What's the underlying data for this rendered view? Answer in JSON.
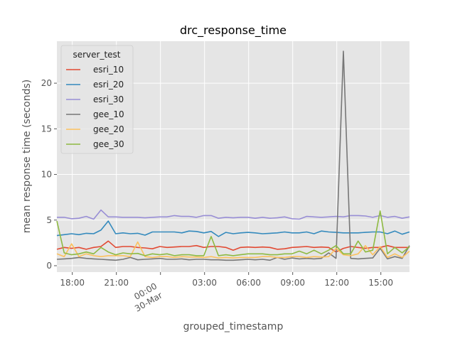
{
  "chart_data": {
    "type": "line",
    "title": "drc_response_time",
    "xlabel": "grouped_timestamp",
    "ylabel": "mean response time (seconds)",
    "x_unit": "hour",
    "x_ticks": [
      {
        "x": 17.95,
        "label": "18:00"
      },
      {
        "x": 20.95,
        "label": "21:00"
      },
      {
        "x": 23.95,
        "label": "00:00",
        "sublabel": "30-Mar"
      },
      {
        "x": 26.95,
        "label": "03:00"
      },
      {
        "x": 29.95,
        "label": "06:00"
      },
      {
        "x": 32.95,
        "label": "09:00"
      },
      {
        "x": 35.95,
        "label": "12:00"
      },
      {
        "x": 38.95,
        "label": "15:00"
      }
    ],
    "y_ticks": [
      0,
      5,
      10,
      15,
      20
    ],
    "xlim": [
      16.9,
      40.9
    ],
    "ylim": [
      -0.7,
      24.6
    ],
    "grid": true,
    "legend": {
      "title": "server_test",
      "position": "top-left"
    },
    "x": [
      16.9,
      17.4,
      17.9,
      18.4,
      18.9,
      19.4,
      19.9,
      20.4,
      20.9,
      21.4,
      21.9,
      22.4,
      22.9,
      23.4,
      23.9,
      24.4,
      24.9,
      25.4,
      25.9,
      26.4,
      26.9,
      27.4,
      27.9,
      28.4,
      28.9,
      29.4,
      29.9,
      30.4,
      30.9,
      31.4,
      31.9,
      32.4,
      32.9,
      33.4,
      33.9,
      34.4,
      34.9,
      35.4,
      35.9,
      36.4,
      36.9,
      37.4,
      37.9,
      38.4,
      38.9,
      39.4,
      39.9,
      40.4,
      40.9
    ],
    "series": [
      {
        "name": "esri_10",
        "color": "#e24a33",
        "values": [
          1.8,
          2.0,
          1.9,
          2.0,
          1.8,
          2.0,
          2.1,
          2.7,
          2.0,
          2.1,
          2.1,
          2.0,
          1.95,
          1.85,
          2.1,
          2.0,
          2.05,
          2.1,
          2.1,
          2.2,
          2.0,
          2.1,
          2.1,
          2.0,
          1.7,
          2.0,
          2.05,
          2.0,
          2.05,
          2.0,
          1.8,
          1.85,
          2.0,
          2.05,
          2.1,
          2.0,
          2.05,
          2.0,
          1.5,
          1.9,
          2.1,
          2.0,
          1.9,
          2.0,
          2.0,
          2.2,
          2.0,
          2.0,
          2.0
        ]
      },
      {
        "name": "esri_20",
        "color": "#348abd",
        "values": [
          3.3,
          3.4,
          3.5,
          3.4,
          3.55,
          3.5,
          3.9,
          4.9,
          3.5,
          3.6,
          3.5,
          3.55,
          3.35,
          3.7,
          3.7,
          3.7,
          3.7,
          3.6,
          3.8,
          3.75,
          3.6,
          3.75,
          3.2,
          3.65,
          3.5,
          3.6,
          3.65,
          3.6,
          3.5,
          3.55,
          3.6,
          3.7,
          3.6,
          3.6,
          3.7,
          3.5,
          3.8,
          3.7,
          3.65,
          3.6,
          3.6,
          3.6,
          3.65,
          3.7,
          3.7,
          3.5,
          3.8,
          3.45,
          3.7
        ]
      },
      {
        "name": "esri_30",
        "color": "#988ed5",
        "values": [
          5.3,
          5.3,
          5.15,
          5.2,
          5.4,
          5.1,
          6.1,
          5.35,
          5.35,
          5.3,
          5.3,
          5.3,
          5.25,
          5.3,
          5.35,
          5.35,
          5.5,
          5.4,
          5.4,
          5.3,
          5.5,
          5.5,
          5.2,
          5.3,
          5.25,
          5.3,
          5.3,
          5.2,
          5.3,
          5.2,
          5.25,
          5.35,
          5.15,
          5.1,
          5.4,
          5.35,
          5.3,
          5.35,
          5.4,
          5.35,
          5.5,
          5.5,
          5.45,
          5.3,
          5.5,
          5.3,
          5.4,
          5.2,
          5.35
        ]
      },
      {
        "name": "gee_10",
        "color": "#777777",
        "values": [
          0.7,
          0.75,
          0.8,
          0.9,
          0.8,
          0.75,
          0.7,
          0.65,
          0.6,
          0.7,
          0.9,
          0.65,
          0.7,
          0.75,
          0.8,
          0.7,
          0.7,
          0.75,
          0.65,
          0.7,
          0.7,
          0.65,
          0.65,
          0.6,
          0.6,
          0.65,
          0.7,
          0.65,
          0.7,
          0.6,
          0.9,
          0.7,
          0.85,
          0.75,
          0.8,
          0.75,
          0.8,
          1.4,
          0.8,
          23.5,
          0.8,
          0.75,
          0.8,
          0.85,
          1.9,
          0.75,
          1.0,
          0.8,
          2.2
        ]
      },
      {
        "name": "gee_20",
        "color": "#fbc15e",
        "values": [
          1.3,
          1.0,
          2.4,
          1.0,
          1.3,
          1.1,
          1.0,
          1.1,
          1.1,
          1.1,
          1.0,
          2.6,
          1.0,
          0.9,
          1.0,
          1.0,
          0.9,
          1.0,
          0.95,
          0.95,
          0.9,
          1.0,
          0.85,
          0.9,
          0.85,
          0.9,
          0.9,
          0.9,
          1.0,
          1.0,
          0.9,
          0.9,
          1.0,
          1.0,
          0.9,
          1.0,
          0.95,
          1.0,
          1.9,
          1.2,
          1.1,
          1.3,
          2.2,
          1.2,
          2.1,
          0.9,
          1.3,
          0.9,
          1.6
        ]
      },
      {
        "name": "gee_30",
        "color": "#8eba42",
        "values": [
          4.9,
          1.4,
          1.2,
          1.3,
          1.5,
          1.3,
          2.0,
          1.5,
          1.2,
          1.4,
          1.3,
          1.35,
          1.1,
          1.3,
          1.2,
          1.3,
          1.1,
          1.2,
          1.2,
          1.1,
          1.1,
          3.2,
          1.1,
          1.2,
          1.1,
          1.2,
          1.3,
          1.3,
          1.3,
          1.2,
          1.2,
          1.3,
          1.3,
          1.6,
          1.3,
          1.7,
          1.3,
          1.7,
          2.2,
          1.3,
          1.3,
          2.7,
          1.5,
          1.7,
          6.0,
          1.3,
          2.0,
          1.4,
          2.1
        ]
      }
    ]
  }
}
